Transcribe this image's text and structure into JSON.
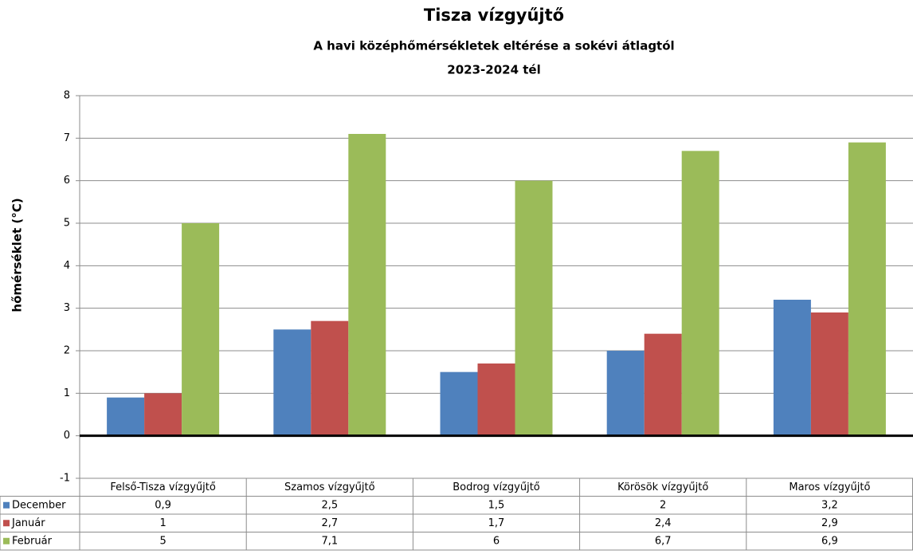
{
  "chart_data": {
    "type": "bar",
    "title": "Tisza vízgyűjtő",
    "subtitle": "A havi középhőmérsékletek eltérése a sokévi átlagtól",
    "period": "2023-2024  tél",
    "y_label": "hőmérséklet (°C)",
    "categories": [
      "Felső-Tisza vízgyűjtő",
      "Szamos vízgyűjtő",
      "Bodrog vízgyűjtő",
      "Körösök vízgyűjtő",
      "Maros vízgyűjtő"
    ],
    "series": [
      {
        "name": "December",
        "color": "#4f81bd",
        "values": [
          0.9,
          2.5,
          1.5,
          2,
          3.2
        ],
        "value_labels": [
          "0,9",
          "2,5",
          "1,5",
          "2",
          "3,2"
        ]
      },
      {
        "name": "Január",
        "color": "#c0504d",
        "values": [
          1,
          2.7,
          1.7,
          2.4,
          2.9
        ],
        "value_labels": [
          "1",
          "2,7",
          "1,7",
          "2,4",
          "2,9"
        ]
      },
      {
        "name": "Február",
        "color": "#9bbb59",
        "values": [
          5,
          7.1,
          6,
          6.7,
          6.9
        ],
        "value_labels": [
          "5",
          "7,1",
          "6",
          "6,7",
          "6,9"
        ]
      }
    ],
    "ylim": [
      -1,
      8
    ],
    "yticks": [
      -1,
      0,
      1,
      2,
      3,
      4,
      5,
      6,
      7,
      8
    ],
    "grid": true,
    "data_table": true
  }
}
